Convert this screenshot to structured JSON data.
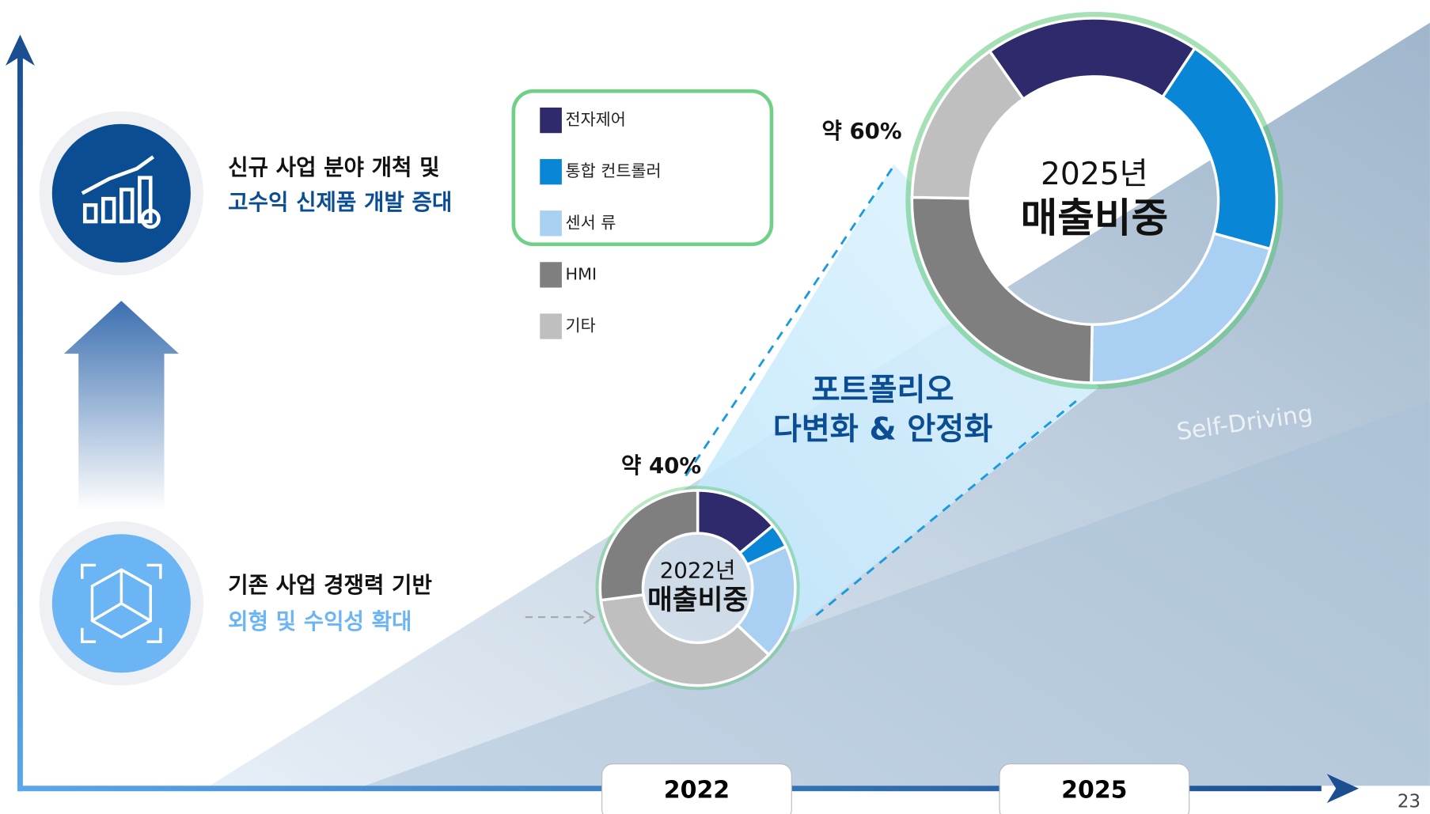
{
  "slide": {
    "items": [
      {
        "line1": "신규 사업 분야 개척 및",
        "line2": "고수익 신제품 개발 증대"
      },
      {
        "line1": "기존 사업 경쟁력 기반",
        "line2": "외형 및 수익성 확대"
      }
    ],
    "message": [
      "포트폴리오",
      "다변화 & 안정화"
    ],
    "background_text": "Self-Driving",
    "x_labels": [
      "2022",
      "2025"
    ],
    "page_number": "23"
  },
  "chart_data": [
    {
      "type": "donut",
      "title": "2022년",
      "subtitle": "매출비중",
      "annotation": "약 40%",
      "categories": [
        "전자제어",
        "통합 컨트롤러",
        "센서 류",
        "기타",
        "HMI"
      ],
      "values": [
        14,
        4,
        19,
        36,
        27
      ],
      "colors": [
        "#2e2a6b",
        "#0a86d6",
        "#a9d0f2",
        "#bfbfbf",
        "#7f7f7f"
      ]
    },
    {
      "type": "donut",
      "title": "2025년",
      "subtitle": "매출비중",
      "annotation": "약 60%",
      "categories": [
        "전자제어",
        "통합 컨트롤러",
        "센서 류",
        "HMI",
        "기타"
      ],
      "values": [
        19,
        20,
        21,
        25,
        15
      ],
      "colors": [
        "#2e2a6b",
        "#0a86d6",
        "#a9d0f2",
        "#7f7f7f",
        "#bfbfbf"
      ]
    }
  ]
}
